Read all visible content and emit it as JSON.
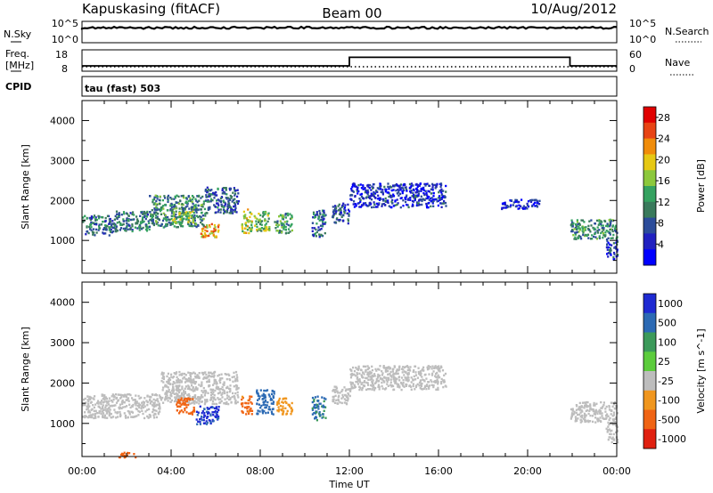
{
  "header": {
    "station": "Kapuskasing (fitACF)",
    "beam": "Beam 00",
    "date": "10/Aug/2012"
  },
  "noise_panel": {
    "left_label": "N.Sky",
    "right_label": "N.Search",
    "left_ticks": [
      "10^5",
      "10^0"
    ],
    "right_ticks": [
      "10^5",
      "10^0"
    ]
  },
  "freq_panel": {
    "left_label_line1": "Freq.",
    "left_label_line2": "[MHz]",
    "right_label": "Nave",
    "left_ticks": [
      "18",
      "8"
    ],
    "right_ticks": [
      "60",
      "0"
    ],
    "cpid_label": "CPID",
    "cpid_text": "tau (fast) 503"
  },
  "chart_data": [
    {
      "type": "heatmap",
      "title": "",
      "xlabel": "",
      "ylabel": "Slant Range [km]",
      "xlim": [
        0,
        24
      ],
      "ylim": [
        180,
        4500
      ],
      "y_ticks": [
        "1000",
        "2000",
        "3000",
        "4000"
      ],
      "colorbar_label": "Power [dB]",
      "colorbar_ticks": [
        "28",
        "24",
        "20",
        "16",
        "12",
        "8",
        "4"
      ],
      "colorbar_range": [
        0,
        30
      ],
      "colorbar_colors": [
        "#0000ff",
        "#2020c0",
        "#2c4c9a",
        "#3a7a5c",
        "#35a260",
        "#8cc83c",
        "#e6c814",
        "#f08c0a",
        "#e84414",
        "#e00000"
      ],
      "regions": [
        {
          "t_start": 0.0,
          "t_end": 1.5,
          "range_low": 1150,
          "range_high": 1650,
          "value": 9
        },
        {
          "t_start": 1.5,
          "t_end": 3.0,
          "range_low": 1250,
          "range_high": 1750,
          "value": 10
        },
        {
          "t_start": 3.0,
          "t_end": 5.5,
          "range_low": 1350,
          "range_high": 2150,
          "value": 11
        },
        {
          "t_start": 5.5,
          "t_end": 7.0,
          "range_low": 1700,
          "range_high": 2350,
          "value": 8
        },
        {
          "t_start": 4.0,
          "t_end": 5.0,
          "range_low": 1450,
          "range_high": 1750,
          "value": 16
        },
        {
          "t_start": 5.3,
          "t_end": 6.1,
          "range_low": 1100,
          "range_high": 1450,
          "value": 21
        },
        {
          "t_start": 7.1,
          "t_end": 7.6,
          "range_low": 1200,
          "range_high": 1800,
          "value": 18
        },
        {
          "t_start": 7.7,
          "t_end": 8.4,
          "range_low": 1250,
          "range_high": 1750,
          "value": 15
        },
        {
          "t_start": 8.6,
          "t_end": 9.4,
          "range_low": 1200,
          "range_high": 1700,
          "value": 13
        },
        {
          "t_start": 10.3,
          "t_end": 10.9,
          "range_low": 1100,
          "range_high": 1800,
          "value": 9
        },
        {
          "t_start": 11.2,
          "t_end": 12.0,
          "range_low": 1450,
          "range_high": 1950,
          "value": 7
        },
        {
          "t_start": 12.0,
          "t_end": 16.3,
          "range_low": 1850,
          "range_high": 2450,
          "value": 5
        },
        {
          "t_start": 18.8,
          "t_end": 20.5,
          "range_low": 1800,
          "range_high": 2050,
          "value": 4
        },
        {
          "t_start": 21.9,
          "t_end": 24.0,
          "range_low": 1050,
          "range_high": 1550,
          "value": 11
        },
        {
          "t_start": 23.5,
          "t_end": 24.0,
          "range_low": 550,
          "range_high": 1050,
          "value": 6
        }
      ]
    },
    {
      "type": "heatmap",
      "title": "",
      "xlabel": "Time UT",
      "ylabel": "Slant Range [km]",
      "xlim": [
        0,
        24
      ],
      "ylim": [
        180,
        4500
      ],
      "x_ticks": [
        "00:00",
        "04:00",
        "08:00",
        "12:00",
        "16:00",
        "20:00",
        "00:00"
      ],
      "y_ticks": [
        "1000",
        "2000",
        "3000",
        "4000"
      ],
      "colorbar_label": "Velocity [m s^-1]",
      "colorbar_ticks": [
        "1000",
        "500",
        "100",
        "25",
        "-25",
        "-100",
        "-500",
        "-1000"
      ],
      "colorbar_colors": [
        "#1e2ad2",
        "#2c6ab4",
        "#3c9a5a",
        "#5ccc3c",
        "#bdbdbd",
        "#f0961e",
        "#f06414",
        "#e02010"
      ],
      "regions": [
        {
          "t_start": 0.0,
          "t_end": 3.5,
          "range_low": 1150,
          "range_high": 1750,
          "value": 0
        },
        {
          "t_start": 3.5,
          "t_end": 7.0,
          "range_low": 1500,
          "range_high": 2300,
          "value": 0
        },
        {
          "t_start": 4.2,
          "t_end": 5.0,
          "range_low": 1250,
          "range_high": 1650,
          "value": -300
        },
        {
          "t_start": 5.1,
          "t_end": 6.1,
          "range_low": 1000,
          "range_high": 1450,
          "value": 600
        },
        {
          "t_start": 7.1,
          "t_end": 7.6,
          "range_low": 1250,
          "range_high": 1700,
          "value": -150
        },
        {
          "t_start": 7.8,
          "t_end": 8.6,
          "range_low": 1250,
          "range_high": 1850,
          "value": 300
        },
        {
          "t_start": 8.7,
          "t_end": 9.4,
          "range_low": 1250,
          "range_high": 1650,
          "value": -60
        },
        {
          "t_start": 10.3,
          "t_end": 10.9,
          "range_low": 1100,
          "range_high": 1700,
          "value": 120
        },
        {
          "t_start": 11.2,
          "t_end": 12.0,
          "range_low": 1500,
          "range_high": 1950,
          "value": 0
        },
        {
          "t_start": 12.0,
          "t_end": 16.3,
          "range_low": 1850,
          "range_high": 2450,
          "value": 0
        },
        {
          "t_start": 21.9,
          "t_end": 24.0,
          "range_low": 1050,
          "range_high": 1550,
          "value": 0
        },
        {
          "t_start": 23.5,
          "t_end": 24.0,
          "range_low": 550,
          "range_high": 1050,
          "value": 0
        },
        {
          "t_start": 1.6,
          "t_end": 2.4,
          "range_low": 180,
          "range_high": 300,
          "value": -200
        }
      ]
    }
  ],
  "freq_series": [
    {
      "t_start": 0.0,
      "t_end": 12.0,
      "value_mhz": 10.5
    },
    {
      "t_start": 12.0,
      "t_end": 21.9,
      "value_mhz": 14.5
    },
    {
      "t_start": 21.9,
      "t_end": 24.0,
      "value_mhz": 10.5
    }
  ],
  "noise_level_log10": 3.5
}
